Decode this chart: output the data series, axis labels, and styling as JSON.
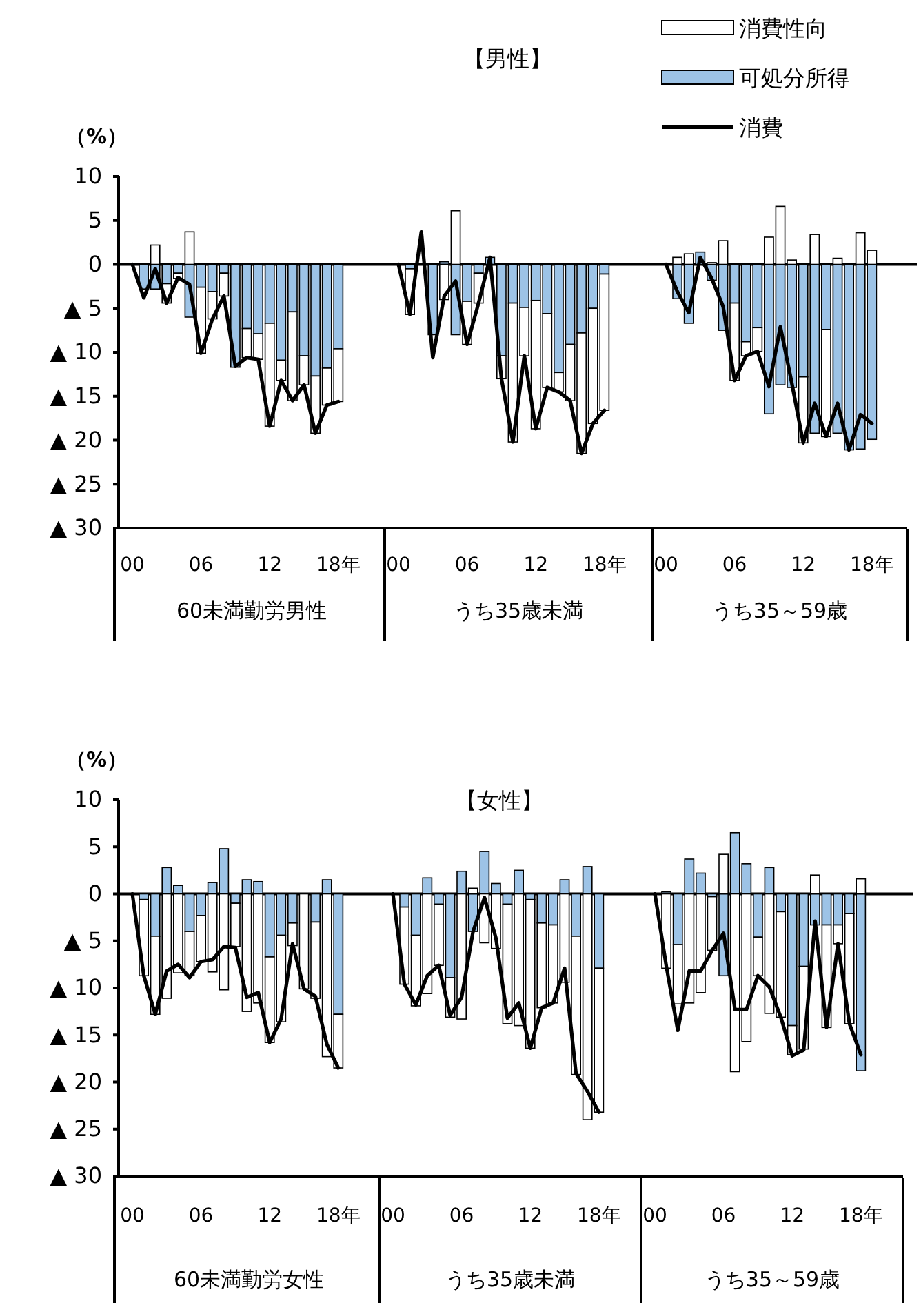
{
  "chart_data": [
    {
      "type": "bar",
      "stacked": true,
      "ylabel": "（%）",
      "xlabel": "60未満勤労男性",
      "categories": [
        "00",
        null,
        null,
        null,
        null,
        null,
        "06",
        null,
        null,
        null,
        null,
        null,
        "12",
        null,
        null,
        null,
        null,
        null,
        "18年"
      ],
      "ylim": [
        -30,
        10
      ],
      "yticks": [
        10,
        5,
        0,
        {
          "value": -5,
          "label": "▲ 5"
        },
        {
          "value": -10,
          "label": "▲ 10"
        },
        {
          "value": -15,
          "label": "▲ 15"
        },
        {
          "value": -20,
          "label": "▲ 20"
        },
        {
          "value": -25,
          "label": "▲ 25"
        },
        {
          "value": -30,
          "label": "▲ 30"
        }
      ],
      "grid": false,
      "legend": false,
      "ref_lines": [
        {
          "axis": "y",
          "value": 0
        }
      ],
      "series": [
        {
          "type": "bar",
          "color": "#9dc3e6",
          "values": [
            null,
            -2.8,
            -2.8,
            -2.2,
            -1.0,
            -6.0,
            -2.6,
            -3.1,
            -1.0,
            -11.7,
            -7.3,
            -7.9,
            -6.7,
            -10.9,
            -5.4,
            -10.4,
            -12.7,
            -11.8,
            -9.6
          ]
        },
        {
          "type": "bar",
          "color": "#ffffff",
          "values": [
            null,
            null,
            2.2,
            -2.2,
            -0.6,
            3.7,
            -7.5,
            -3.1,
            -2.6,
            0,
            -3.3,
            -2.9,
            -11.7,
            -2.3,
            -10.1,
            -3.3,
            -6.5,
            -4.2,
            -6.0
          ]
        },
        {
          "type": "line",
          "color": "#000000",
          "values": [
            0,
            -3.8,
            -0.5,
            -4.4,
            -1.5,
            -2.3,
            -10.1,
            -6.2,
            -3.6,
            -11.6,
            -10.6,
            -10.8,
            -18.4,
            -13.2,
            -15.5,
            -13.7,
            -19.2,
            -16.0,
            -15.6
          ]
        }
      ]
    },
    {
      "type": "bar",
      "stacked": true,
      "title": "【男性】",
      "xlabel": "うち35歳未満",
      "categories": [
        "00",
        null,
        null,
        null,
        null,
        null,
        "06",
        null,
        null,
        null,
        null,
        null,
        "12",
        null,
        null,
        null,
        null,
        null,
        "18年"
      ],
      "ylim": [
        -30,
        10
      ],
      "tick_labels": "x",
      "grid": false,
      "legend": false,
      "ref_lines": [
        {
          "axis": "y",
          "value": 0
        }
      ],
      "series": [
        {
          "type": "bar",
          "color": "#9dc3e6",
          "values": [
            null,
            -0.5,
            null,
            -8.0,
            0.3,
            -8.0,
            -4.2,
            -1.0,
            0.8,
            -10.4,
            -4.4,
            -4.9,
            -4.1,
            -5.6,
            -12.3,
            -9.1,
            -7.8,
            -5.0,
            -1.1
          ]
        },
        {
          "type": "bar",
          "color": "#ffffff",
          "values": [
            null,
            -5.2,
            0,
            null,
            -4.0,
            6.1,
            -4.9,
            -3.4,
            0,
            -2.6,
            -15.8,
            -5.5,
            -14.6,
            -8.4,
            -2.2,
            -6.4,
            -13.7,
            -13.1,
            -15.5
          ]
        },
        {
          "type": "line",
          "color": "#000000",
          "values": [
            0,
            -5.7,
            3.7,
            -10.6,
            -3.6,
            -1.9,
            -9.1,
            -4.4,
            0.8,
            -13.0,
            -20.2,
            -10.4,
            -18.7,
            -14.0,
            -14.5,
            -15.5,
            -21.5,
            -18.1,
            -16.6
          ]
        }
      ]
    },
    {
      "type": "bar",
      "stacked": true,
      "xlabel": "うち35～59歳",
      "categories": [
        "00",
        null,
        null,
        null,
        null,
        null,
        "06",
        null,
        null,
        null,
        null,
        null,
        "12",
        null,
        null,
        null,
        null,
        null,
        "18年"
      ],
      "ylim": [
        -30,
        10
      ],
      "tick_labels": "x",
      "grid": false,
      "legend": "top",
      "ref_lines": [
        {
          "axis": "y",
          "value": 0
        }
      ],
      "series": [
        {
          "name": "可処分所得",
          "type": "bar",
          "color": "#9dc3e6",
          "values": [
            null,
            -3.9,
            -6.7,
            1.4,
            -1.8,
            -7.5,
            -4.4,
            -8.8,
            -7.2,
            -17.0,
            -13.7,
            -14.0,
            -12.8,
            -19.2,
            -7.4,
            -19.2,
            -21.1,
            -21.0,
            -19.9
          ]
        },
        {
          "name": "消費性向",
          "type": "bar",
          "color": "#ffffff",
          "values": [
            null,
            0.8,
            1.2,
            null,
            0.2,
            2.7,
            -8.8,
            -1.6,
            -2.7,
            3.1,
            6.6,
            0.5,
            -7.5,
            3.4,
            -12.2,
            0.7,
            0,
            3.6,
            1.6
          ]
        },
        {
          "name": "消費",
          "type": "line",
          "color": "#000000",
          "values": [
            0,
            -3.1,
            -5.5,
            0.8,
            -1.6,
            -4.8,
            -13.2,
            -10.4,
            -9.9,
            -13.9,
            -7.1,
            -13.5,
            -20.3,
            -15.8,
            -19.6,
            -15.8,
            -21.1,
            -17.1,
            -18.1
          ]
        }
      ]
    },
    {
      "type": "bar",
      "stacked": true,
      "ylabel": "（%）",
      "xlabel": "60未満勤労女性",
      "categories": [
        "00",
        null,
        null,
        null,
        null,
        null,
        "06",
        null,
        null,
        null,
        null,
        null,
        "12",
        null,
        null,
        null,
        null,
        null,
        "18年"
      ],
      "ylim": [
        -30,
        10
      ],
      "yticks": [
        10,
        5,
        0,
        {
          "value": -5,
          "label": "▲ 5"
        },
        {
          "value": -10,
          "label": "▲ 10"
        },
        {
          "value": -15,
          "label": "▲ 15"
        },
        {
          "value": -20,
          "label": "▲ 20"
        },
        {
          "value": -25,
          "label": "▲ 25"
        },
        {
          "value": -30,
          "label": "▲ 30"
        }
      ],
      "grid": false,
      "legend": false,
      "ref_lines": [
        {
          "axis": "y",
          "value": 0
        }
      ],
      "series": [
        {
          "type": "bar",
          "color": "#9dc3e6",
          "values": [
            null,
            -0.6,
            -4.5,
            2.8,
            0.9,
            -4.0,
            -2.3,
            1.2,
            4.8,
            -1.0,
            1.5,
            1.3,
            -6.7,
            -4.4,
            -3.1,
            0,
            -3.0,
            1.5,
            -12.8
          ]
        },
        {
          "type": "bar",
          "color": "#ffffff",
          "values": [
            null,
            -8.1,
            -8.3,
            -11.1,
            -8.4,
            -4.7,
            -4.9,
            -8.3,
            -10.2,
            -4.6,
            -12.5,
            -11.6,
            -9.1,
            -9.2,
            -2.4,
            -10.1,
            -8.1,
            -17.3,
            -5.7
          ]
        },
        {
          "type": "line",
          "color": "#000000",
          "values": [
            0,
            -8.7,
            -12.8,
            -8.2,
            -7.5,
            -8.9,
            -7.2,
            -7.0,
            -5.6,
            -5.7,
            -11.0,
            -10.5,
            -15.8,
            -13.3,
            -5.3,
            -10.1,
            -10.9,
            -16.0,
            -18.5
          ]
        }
      ]
    },
    {
      "type": "bar",
      "stacked": true,
      "title": "【女性】",
      "xlabel": "うち35歳未満",
      "categories": [
        "00",
        null,
        null,
        null,
        null,
        null,
        "06",
        null,
        null,
        null,
        null,
        null,
        "12",
        null,
        null,
        null,
        null,
        null,
        "18年"
      ],
      "ylim": [
        -30,
        10
      ],
      "tick_labels": "x",
      "grid": false,
      "legend": false,
      "ref_lines": [
        {
          "axis": "y",
          "value": 0
        }
      ],
      "series": [
        {
          "type": "bar",
          "color": "#9dc3e6",
          "values": [
            null,
            -1.4,
            -4.4,
            1.7,
            -1.1,
            -8.9,
            2.4,
            -4.0,
            4.5,
            1.1,
            -1.1,
            2.5,
            -0.6,
            -3.1,
            -3.3,
            1.5,
            -4.5,
            2.9,
            -7.9
          ]
        },
        {
          "type": "bar",
          "color": "#ffffff",
          "values": [
            null,
            -8.2,
            -7.5,
            -10.6,
            -6.5,
            -4.2,
            -13.3,
            0.6,
            -5.2,
            -5.8,
            -12.7,
            -14.0,
            -15.8,
            -9.0,
            -8.3,
            -9.4,
            -14.7,
            -24.0,
            -15.3
          ]
        },
        {
          "type": "line",
          "color": "#000000",
          "values": [
            0,
            -9.6,
            -11.8,
            -8.7,
            -7.6,
            -12.9,
            -11.0,
            -4.0,
            -0.4,
            -4.7,
            -13.2,
            -11.6,
            -16.4,
            -12.1,
            -11.6,
            -7.9,
            -19.1,
            -21.0,
            -23.2
          ]
        }
      ]
    },
    {
      "type": "bar",
      "stacked": true,
      "xlabel": "うち35～59歳",
      "categories": [
        "00",
        null,
        null,
        null,
        null,
        null,
        "06",
        null,
        null,
        null,
        null,
        null,
        "12",
        null,
        null,
        null,
        null,
        null,
        "18年"
      ],
      "ylim": [
        -30,
        10
      ],
      "tick_labels": "x",
      "grid": false,
      "legend": false,
      "ref_lines": [
        {
          "axis": "y",
          "value": 0
        }
      ],
      "series": [
        {
          "type": "bar",
          "color": "#9dc3e6",
          "values": [
            null,
            0.2,
            -5.4,
            3.7,
            2.2,
            -0.3,
            -8.7,
            6.5,
            3.2,
            -4.6,
            2.8,
            -1.9,
            -14.0,
            -7.7,
            -3.3,
            -3.3,
            -3.3,
            -2.1,
            -18.8
          ]
        },
        {
          "type": "bar",
          "color": "#ffffff",
          "values": [
            null,
            -7.9,
            -6.3,
            -11.6,
            -10.5,
            -5.7,
            4.2,
            -18.9,
            -15.7,
            -4.1,
            -12.7,
            -11.2,
            -3.1,
            -8.8,
            2.0,
            -10.9,
            -2.0,
            -11.7,
            1.6
          ]
        },
        {
          "type": "line",
          "color": "#000000",
          "values": [
            0,
            -7.7,
            -14.5,
            -8.2,
            -8.2,
            -6.0,
            -4.2,
            -12.3,
            -12.3,
            -8.7,
            -9.9,
            -13.1,
            -17.2,
            -16.6,
            -2.9,
            -14.2,
            -5.3,
            -13.8,
            -17.1
          ]
        }
      ]
    }
  ]
}
